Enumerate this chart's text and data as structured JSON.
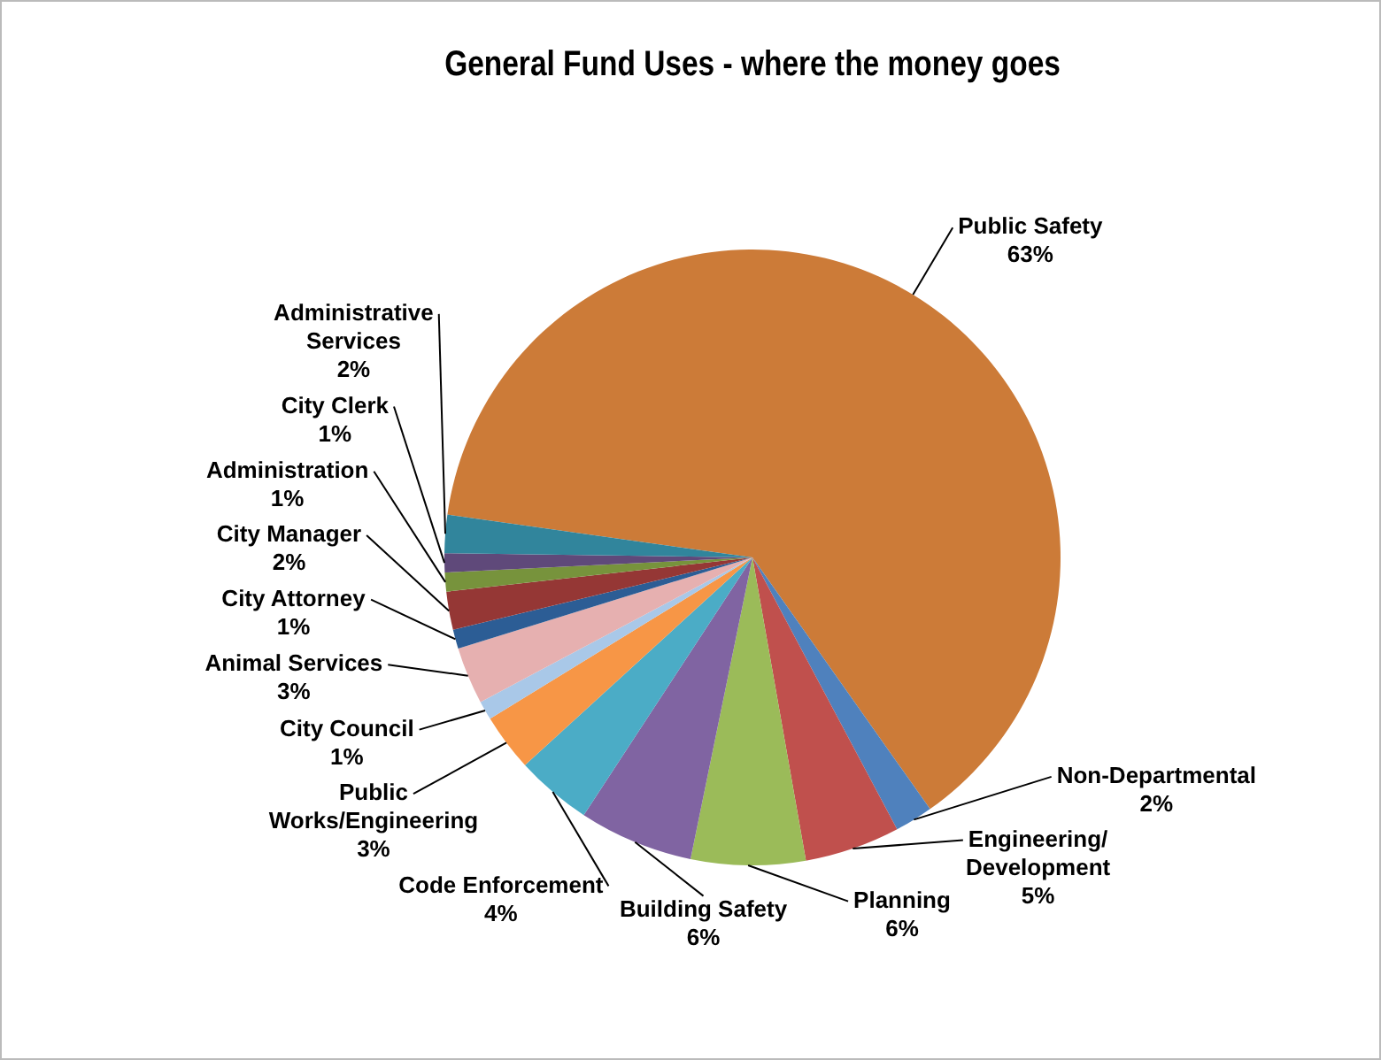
{
  "chart_data": {
    "type": "pie",
    "title": "General Fund Uses - where the money goes",
    "categories": [
      "Public Safety",
      "Non-Departmental",
      "Engineering/ Development",
      "Planning",
      "Building Safety",
      "Code Enforcement",
      "Public Works/Engineering",
      "City Council",
      "Animal Services",
      "City Attorney",
      "City Manager",
      "Administration",
      "City Clerk",
      "Administrative Services"
    ],
    "values": [
      63,
      2,
      5,
      6,
      6,
      4,
      3,
      1,
      3,
      1,
      2,
      1,
      1,
      2
    ],
    "value_labels": [
      "63%",
      "2%",
      "5%",
      "6%",
      "6%",
      "4%",
      "3%",
      "1%",
      "3%",
      "1%",
      "2%",
      "1%",
      "1%",
      "2%"
    ],
    "colors": [
      "#cc7b38",
      "#4f81bd",
      "#c0504d",
      "#9bbb59",
      "#8064a2",
      "#4bacc6",
      "#f79646",
      "#a9c8e8",
      "#e6b0b0",
      "#2c5d95",
      "#953735",
      "#77933c",
      "#5f497a",
      "#31859c"
    ],
    "legend": false
  }
}
